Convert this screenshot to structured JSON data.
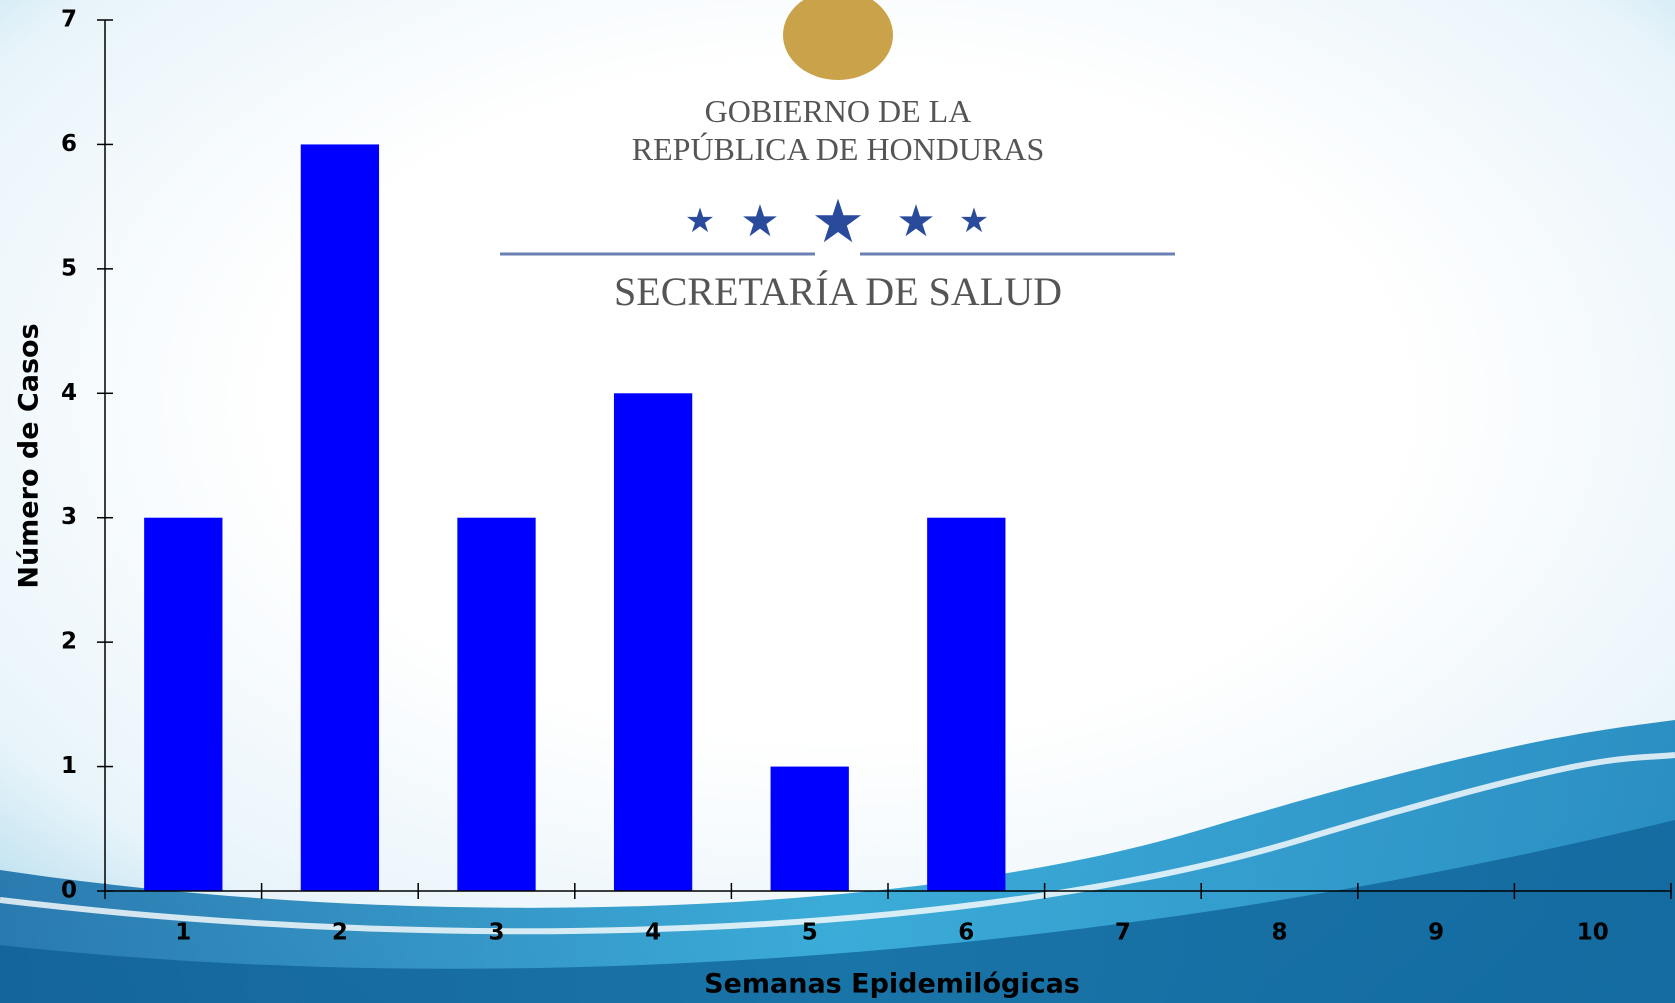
{
  "chart_data": {
    "type": "bar",
    "x_label": "Semanas Epidemilógicas",
    "y_label": "Número de Casos",
    "categories": [
      "1",
      "2",
      "3",
      "4",
      "5",
      "6",
      "7",
      "8",
      "9",
      "10"
    ],
    "values": [
      3,
      6,
      3,
      4,
      1,
      3,
      null,
      null,
      null,
      null
    ],
    "color": "#0000ff",
    "ylim": [
      0,
      7
    ],
    "yticks": [
      0,
      1,
      2,
      3,
      4,
      5,
      6,
      7
    ]
  },
  "logo": {
    "lines": [
      "GOBIERNO DE LA",
      "REPÚBLICA DE HONDURAS",
      "SECRETARÍA DE SALUD"
    ]
  }
}
